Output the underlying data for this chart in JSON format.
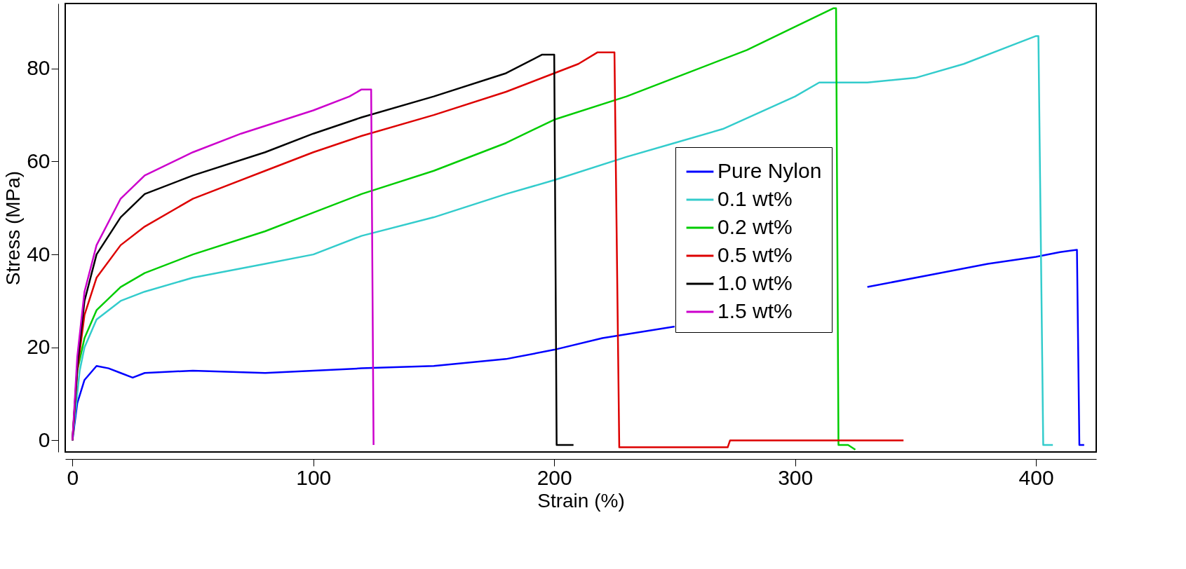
{
  "chart_data": {
    "type": "line",
    "xlabel": "Strain (%)",
    "ylabel": "Stress (MPa)",
    "xlim": [
      -3,
      425
    ],
    "ylim": [
      -2.5,
      94
    ],
    "xticks": [
      0,
      100,
      200,
      300,
      400
    ],
    "yticks": [
      0,
      20,
      40,
      60,
      80
    ],
    "grid": false,
    "legend": "right",
    "line_style": "solid",
    "marker": "none",
    "series": [
      {
        "name": "Pure Nylon",
        "color": "#0000ff",
        "x": [
          0,
          2,
          5,
          10,
          15,
          20,
          25,
          30,
          50,
          80,
          100,
          120,
          150,
          180,
          200,
          220,
          250,
          280,
          300,
          330,
          360,
          380,
          400,
          410,
          417,
          418,
          420
        ],
        "values": [
          0,
          8,
          13,
          16,
          15.5,
          14.5,
          13.5,
          14.5,
          15,
          14.5,
          15,
          15.5,
          16,
          17.5,
          19.5,
          22,
          24.5,
          null,
          null,
          33,
          36,
          38,
          39.5,
          40.5,
          41,
          -1,
          -1
        ]
      },
      {
        "name": "0.1 wt%",
        "color": "#33cccc",
        "x": [
          0,
          3,
          5,
          10,
          20,
          30,
          50,
          80,
          100,
          120,
          150,
          180,
          200,
          230,
          250,
          270,
          300,
          310,
          320,
          330,
          350,
          370,
          390,
          400,
          401,
          403,
          407
        ],
        "values": [
          0,
          15,
          20,
          26,
          30,
          32,
          35,
          38,
          40,
          44,
          48,
          53,
          56,
          61,
          64,
          67,
          74,
          77,
          77,
          77,
          78,
          81,
          85,
          87,
          87,
          -1,
          -1
        ]
      },
      {
        "name": "0.2 wt%",
        "color": "#00cc00",
        "x": [
          0,
          2,
          5,
          10,
          20,
          30,
          50,
          80,
          100,
          120,
          150,
          180,
          200,
          230,
          250,
          280,
          300,
          316,
          317,
          318,
          322,
          325
        ],
        "values": [
          0,
          15,
          22,
          28,
          33,
          36,
          40,
          45,
          49,
          53,
          58,
          64,
          69,
          74,
          78,
          84,
          89,
          93,
          93,
          -1,
          -1,
          -2
        ]
      },
      {
        "name": "0.5 wt%",
        "color": "#dd0000",
        "x": [
          0,
          2,
          5,
          10,
          20,
          30,
          50,
          80,
          100,
          120,
          150,
          180,
          200,
          210,
          218,
          225,
          227,
          250,
          272,
          273,
          300,
          345
        ],
        "values": [
          0,
          15,
          27,
          35,
          42,
          46,
          52,
          58,
          62,
          65.5,
          70,
          75,
          79,
          81,
          83.5,
          83.5,
          -1.5,
          -1.5,
          -1.5,
          0,
          0,
          0
        ]
      },
      {
        "name": "1.0 wt%",
        "color": "#000000",
        "x": [
          0,
          2,
          5,
          10,
          20,
          30,
          50,
          80,
          100,
          120,
          150,
          180,
          195,
          200,
          201,
          205,
          208
        ],
        "values": [
          0,
          16,
          30,
          40,
          48,
          53,
          57,
          62,
          66,
          69.5,
          74,
          79,
          83,
          83,
          -1,
          -1,
          -1
        ]
      },
      {
        "name": "1.5 wt%",
        "color": "#cc00cc",
        "x": [
          0,
          2,
          5,
          10,
          20,
          30,
          50,
          70,
          100,
          115,
          120,
          124,
          125
        ],
        "values": [
          0,
          18,
          32,
          42,
          52,
          57,
          62,
          66,
          71,
          74,
          75.5,
          75.5,
          -1
        ]
      }
    ]
  }
}
